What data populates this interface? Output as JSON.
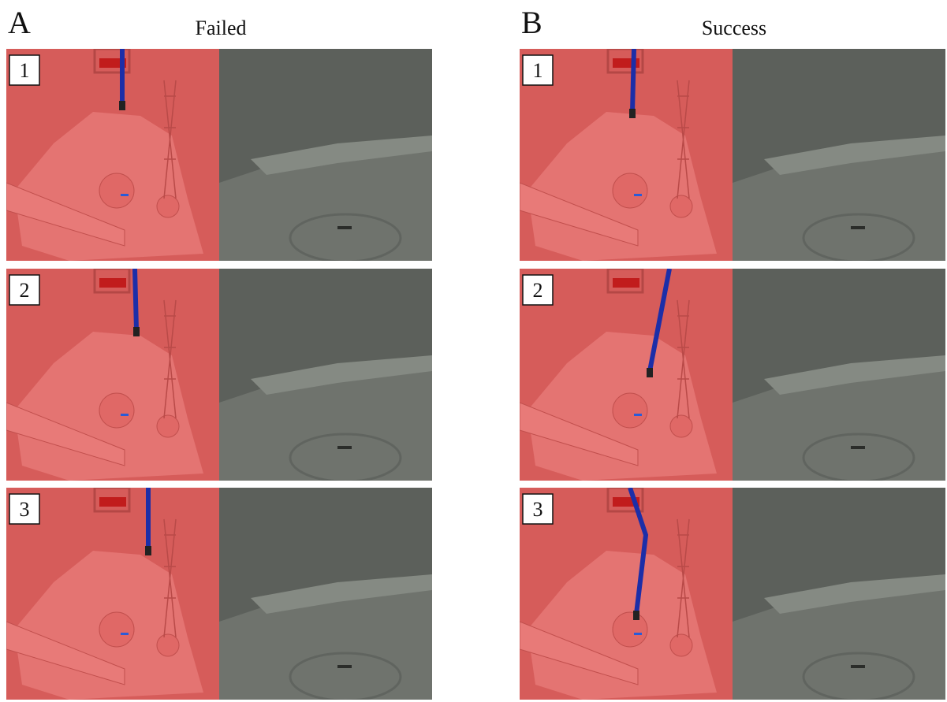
{
  "panels": [
    {
      "letter": "A",
      "title": "Failed",
      "rows": [
        "1",
        "2",
        "3"
      ]
    },
    {
      "letter": "B",
      "title": "Success",
      "rows": [
        "1",
        "2",
        "3"
      ]
    }
  ]
}
